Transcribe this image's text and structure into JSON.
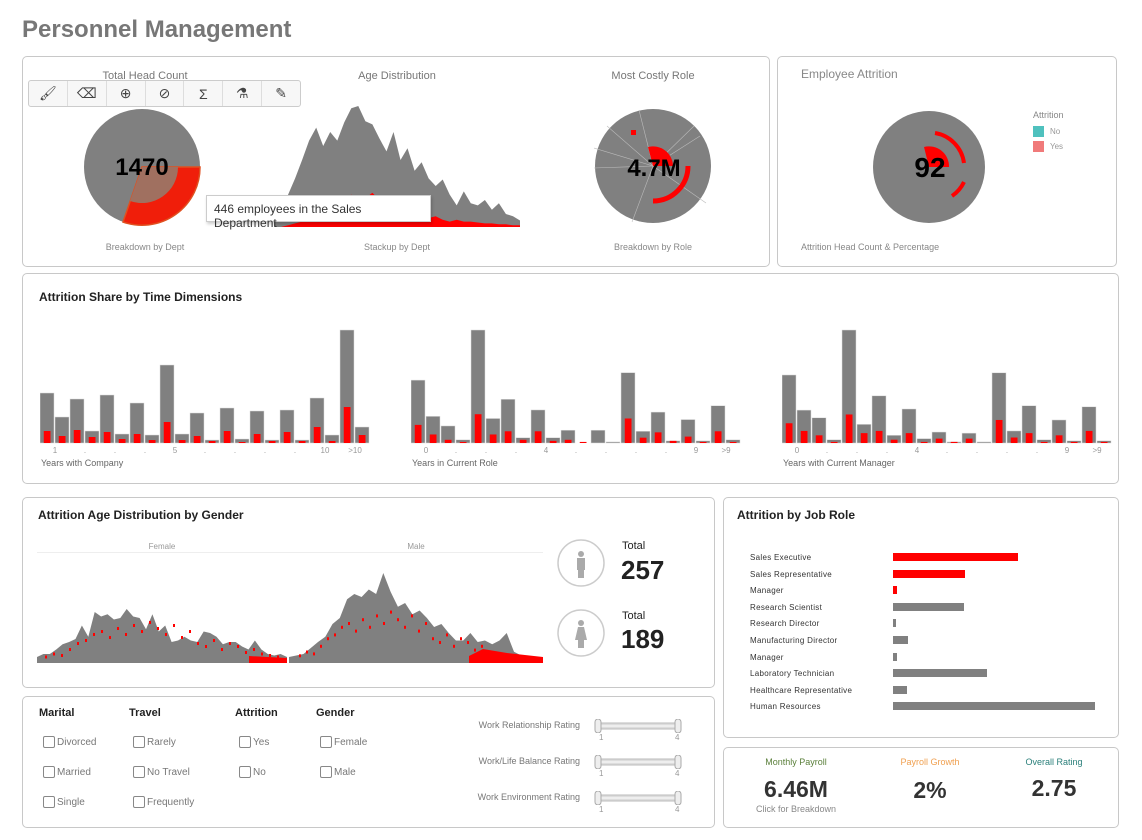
{
  "page": {
    "title": "Personnel Management"
  },
  "toolbar": {
    "icons": [
      "brush-icon",
      "brush-clear-icon",
      "zoom-in-icon",
      "hide-icon",
      "formula-icon",
      "microscope-icon",
      "pencil-icon"
    ]
  },
  "colors": {
    "gray": "#808080",
    "red": "#ff0000",
    "legend_no": "#4fc1be",
    "legend_yes": "#f07a7a",
    "payroll": "#5a7f3a",
    "growth": "#f0a050",
    "rating": "#2a7f7a"
  },
  "headcount": {
    "title": "Total Head Count",
    "value": "1470",
    "subtitle": "Breakdown by Dept",
    "tooltip": "446 employees in the Sales Department"
  },
  "age": {
    "title": "Age Distribution",
    "subtitle": "Stackup by Dept",
    "gray": [
      10,
      12,
      30,
      45,
      62,
      80,
      92,
      75,
      88,
      80,
      97,
      110,
      112,
      98,
      95,
      82,
      70,
      88,
      62,
      73,
      52,
      60,
      45,
      38,
      44,
      30,
      20,
      33,
      22,
      20,
      25,
      16,
      22,
      12,
      10,
      6
    ],
    "red": [
      0,
      0,
      2,
      4,
      6,
      10,
      14,
      18,
      22,
      26,
      30,
      36,
      28,
      32,
      38,
      30,
      26,
      20,
      18,
      16,
      14,
      12,
      10,
      12,
      8,
      6,
      8,
      6,
      6,
      5,
      4,
      4,
      3,
      3,
      2,
      2
    ]
  },
  "costly": {
    "title": "Most Costly Role",
    "value": "4.7M",
    "subtitle": "Breakdown by Role"
  },
  "attrition": {
    "title": "Employee Attrition",
    "value": "92",
    "subtitle": "Attrition Head Count & Percentage",
    "legend_title": "Attrition",
    "legend": [
      {
        "label": "No",
        "color": "#4fc1be"
      },
      {
        "label": "Yes",
        "color": "#f07a7a"
      }
    ]
  },
  "time": {
    "title": "Attrition Share by Time Dimensions",
    "chart_data": [
      {
        "type": "bar",
        "xlabel": "Years with Company",
        "ticks": [
          "1",
          ".",
          ".",
          ".",
          "5",
          ".",
          ".",
          ".",
          ".",
          "10",
          ">10"
        ],
        "total": [
          50,
          26,
          44,
          12,
          48,
          9,
          40,
          8,
          78,
          9,
          30,
          3,
          35,
          4,
          32,
          3,
          33,
          3,
          45,
          8,
          113,
          16
        ],
        "attrition": [
          12,
          7,
          13,
          6,
          11,
          4,
          9,
          3,
          21,
          3,
          7,
          2,
          12,
          1,
          9,
          2,
          11,
          2,
          16,
          2,
          36,
          8
        ]
      },
      {
        "type": "bar",
        "xlabel": "Years in Current Role",
        "ticks": [
          "0",
          ".",
          ".",
          ".",
          "4",
          ".",
          ".",
          ".",
          ".",
          "9",
          ">9"
        ],
        "total": [
          59,
          25,
          16,
          3,
          106,
          23,
          41,
          5,
          31,
          5,
          12,
          0,
          12,
          1,
          66,
          11,
          29,
          2,
          22,
          2,
          35,
          3
        ],
        "attrition": [
          17,
          8,
          3,
          1,
          27,
          8,
          11,
          3,
          11,
          2,
          3,
          1,
          0,
          0,
          23,
          5,
          10,
          2,
          6,
          1,
          11,
          1
        ]
      },
      {
        "type": "bar",
        "xlabel": "Years with Current Manager",
        "ticks": [
          "0",
          ".",
          ".",
          ".",
          "4",
          ".",
          ".",
          ".",
          ".",
          "9",
          ">9"
        ],
        "total": [
          62,
          30,
          23,
          3,
          103,
          17,
          43,
          7,
          31,
          4,
          10,
          1,
          9,
          1,
          64,
          11,
          34,
          3,
          21,
          2,
          33,
          2
        ],
        "attrition": [
          18,
          11,
          7,
          1,
          26,
          9,
          11,
          3,
          9,
          1,
          4,
          1,
          4,
          0,
          21,
          5,
          9,
          1,
          7,
          1,
          11,
          1
        ]
      }
    ]
  },
  "gender": {
    "title": "Attrition Age Distribution by Gender",
    "female_label": "Female",
    "male_label": "Male",
    "female": [
      8,
      12,
      12,
      18,
      25,
      28,
      32,
      50,
      35,
      68,
      62,
      65,
      58,
      60,
      72,
      62,
      60,
      45,
      65,
      42,
      50,
      28,
      30,
      35,
      30,
      28,
      42,
      40,
      35,
      25,
      28,
      28,
      22,
      18,
      30,
      18,
      12,
      10,
      12,
      8
    ],
    "male": [
      8,
      10,
      12,
      20,
      28,
      35,
      52,
      60,
      85,
      92,
      88,
      98,
      92,
      120,
      95,
      75,
      80,
      65,
      70,
      60,
      48,
      52,
      40,
      30,
      30,
      40,
      28,
      30,
      25,
      30,
      40,
      15,
      10,
      8,
      8,
      6
    ],
    "male_total_label": "Total",
    "male_total": "257",
    "female_total_label": "Total",
    "female_total": "189"
  },
  "jobrole": {
    "title": "Attrition by Job Role",
    "items": [
      {
        "label": "Sales Executive",
        "value": 125,
        "highlight": true
      },
      {
        "label": "Sales Representative",
        "value": 72,
        "highlight": true
      },
      {
        "label": "Manager",
        "value": 4,
        "highlight": true
      },
      {
        "label": "Research Scientist",
        "value": 71,
        "highlight": false
      },
      {
        "label": "Research Director",
        "value": 3,
        "highlight": false
      },
      {
        "label": "Manufacturing Director",
        "value": 15,
        "highlight": false
      },
      {
        "label": "Manager",
        "value": 4,
        "highlight": false
      },
      {
        "label": "Laboratory Technician",
        "value": 94,
        "highlight": false
      },
      {
        "label": "Healthcare Representative",
        "value": 14,
        "highlight": false
      },
      {
        "label": "Human Resources",
        "value": 202,
        "highlight": false
      }
    ]
  },
  "filters": {
    "groups": [
      {
        "title": "Marital",
        "options": [
          "Divorced",
          "Married",
          "Single"
        ]
      },
      {
        "title": "Travel",
        "options": [
          "Rarely",
          "No Travel",
          "Frequently"
        ]
      },
      {
        "title": "Attrition",
        "options": [
          "Yes",
          "No"
        ]
      },
      {
        "title": "Gender",
        "options": [
          "Female",
          "Male"
        ]
      }
    ],
    "sliders": [
      {
        "label": "Work Relationship Rating",
        "min": "1",
        "max": "4"
      },
      {
        "label": "Work/Life Balance Rating",
        "min": "1",
        "max": "4"
      },
      {
        "label": "Work Environment Rating",
        "min": "1",
        "max": "4"
      }
    ]
  },
  "kpis": {
    "payroll_label": "Monthly Payroll",
    "payroll": "6.46M",
    "payroll_sub": "Click for Breakdown",
    "growth_label": "Payroll Growth",
    "growth": "2%",
    "rating_label": "Overall Rating",
    "rating": "2.75"
  }
}
